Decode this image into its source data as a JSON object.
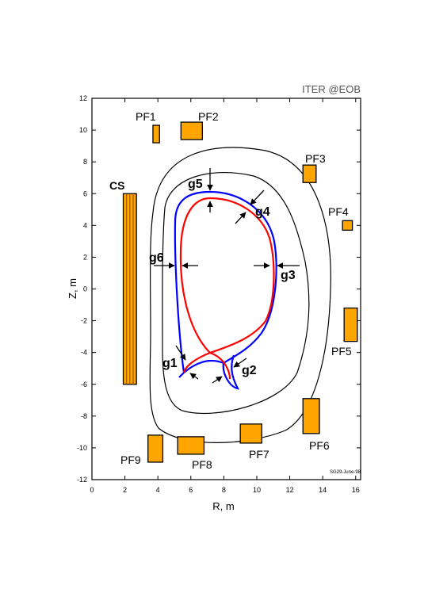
{
  "title": "ITER @EOB",
  "date_stamp": "SG29-June-98",
  "xlabel": "R, m",
  "ylabel": "Z, m",
  "x_ticks": [
    0,
    2,
    4,
    6,
    8,
    10,
    12,
    14,
    16
  ],
  "y_ticks": [
    12,
    10,
    8,
    6,
    4,
    2,
    0,
    -2,
    -4,
    -6,
    -8,
    -10,
    -12
  ],
  "xlim": [
    0,
    16.3
  ],
  "ylim": [
    -12,
    12
  ],
  "colors": {
    "coil_fill": "#ffa500",
    "outer_contour": "#000000",
    "blue_separatrix": "#0000ff",
    "red_separatrix": "#ff0000",
    "cs_stripe": "#8b4500"
  },
  "coils": [
    {
      "label": "PF1",
      "r": [
        3.7,
        4.1
      ],
      "z": [
        9.2,
        10.3
      ]
    },
    {
      "label": "PF2",
      "r": [
        5.4,
        6.7
      ],
      "z": [
        9.4,
        10.5
      ]
    },
    {
      "label": "PF3",
      "r": [
        12.8,
        13.6
      ],
      "z": [
        6.7,
        7.8
      ]
    },
    {
      "label": "PF4",
      "r": [
        15.2,
        15.8
      ],
      "z": [
        3.7,
        4.3
      ]
    },
    {
      "label": "PF5",
      "r": [
        15.3,
        16.1
      ],
      "z": [
        -3.3,
        -1.2
      ]
    },
    {
      "label": "PF6",
      "r": [
        12.8,
        13.8
      ],
      "z": [
        -9.1,
        -6.9
      ]
    },
    {
      "label": "PF7",
      "r": [
        9.0,
        10.3
      ],
      "z": [
        -9.7,
        -8.5
      ]
    },
    {
      "label": "PF8",
      "r": [
        5.2,
        6.8
      ],
      "z": [
        -10.4,
        -9.3
      ]
    },
    {
      "label": "PF9",
      "r": [
        3.4,
        4.3
      ],
      "z": [
        -10.9,
        -9.2
      ]
    },
    {
      "label": "CS",
      "r": [
        1.9,
        2.7
      ],
      "z": [
        -6.0,
        6.0
      ]
    }
  ],
  "gaps": [
    "g1",
    "g2",
    "g3",
    "g4",
    "g5",
    "g6"
  ]
}
